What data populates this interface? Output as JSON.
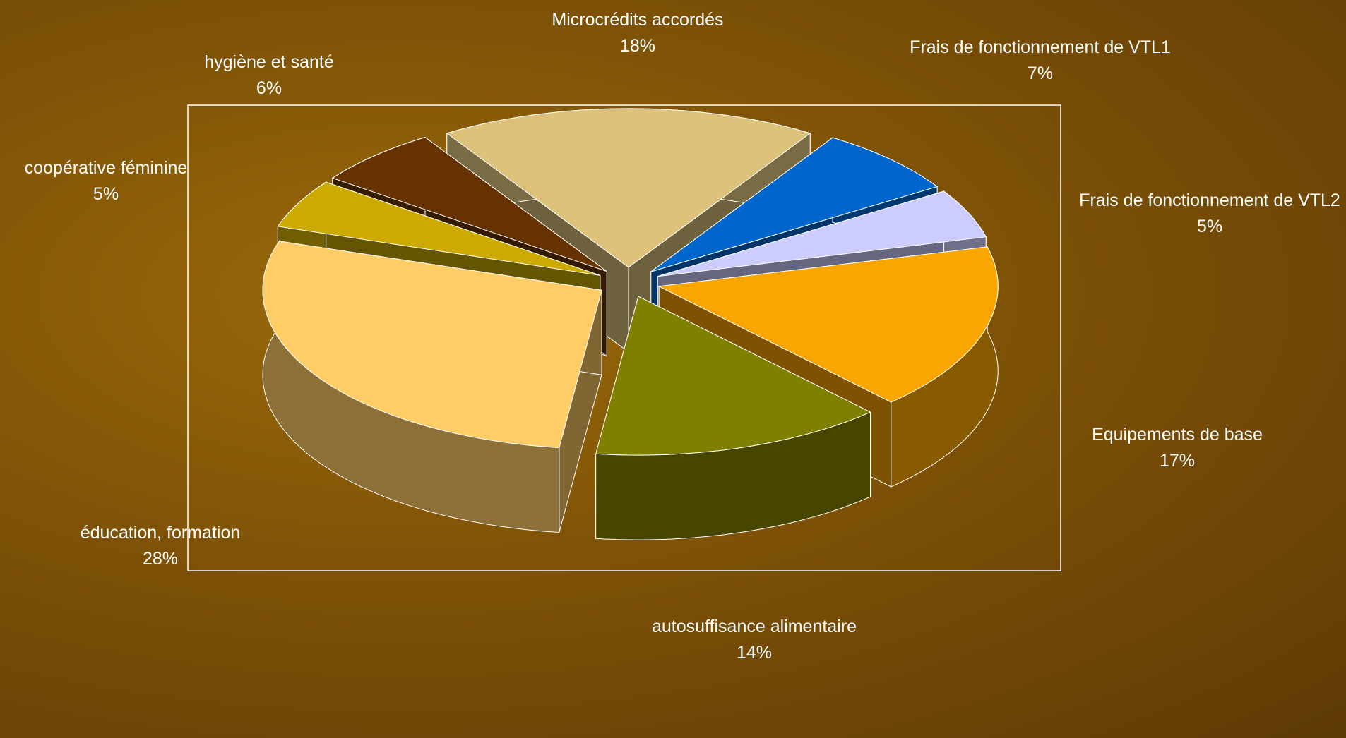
{
  "chart_data": {
    "type": "pie3d",
    "categories": [
      "Microcrédits accordés",
      "Frais de fonctionnement de VTL1",
      "Frais de fonctionnement de VTL2",
      "Equipements de base",
      "autosuffisance alimentaire",
      "éducation, formation",
      "coopérative féminine",
      "hygiène et santé"
    ],
    "values": [
      18,
      7,
      5,
      17,
      14,
      28,
      5,
      6
    ],
    "value_labels": [
      "18%",
      "7%",
      "5%",
      "17%",
      "14%",
      "28%",
      "5%",
      "6%"
    ],
    "colors": [
      "#dcc27a",
      "#0066cc",
      "#ccccff",
      "#f9a602",
      "#808000",
      "#ffcc66",
      "#ccaa00",
      "#663300"
    ]
  }
}
